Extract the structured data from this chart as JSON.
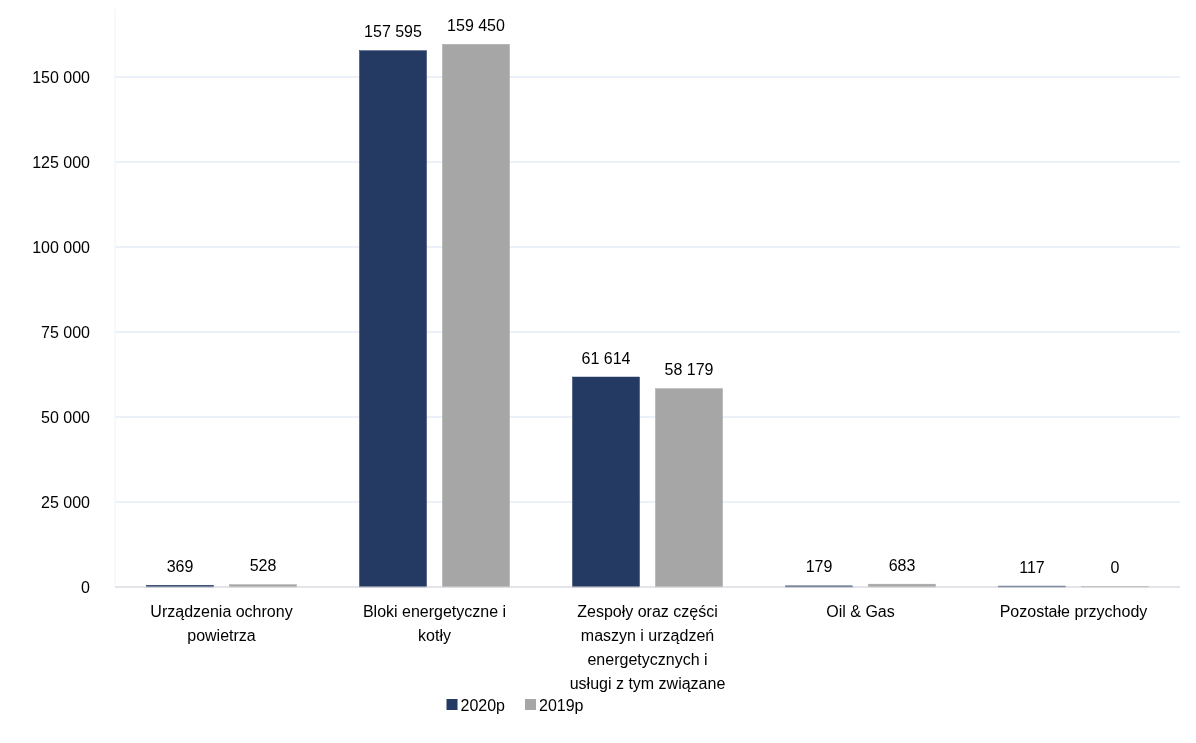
{
  "chart_data": {
    "type": "bar",
    "categories": [
      "Urządzenia ochrony powietrza",
      "Bloki energetyczne i kotły",
      "Zespoły oraz części maszyn i urządzeń energetycznych i usługi z tym związane",
      "Oil & Gas",
      "Pozostałe przychody"
    ],
    "series": [
      {
        "name": "2020p",
        "color": "#243a63",
        "values": [
          369,
          157595,
          61614,
          179,
          117
        ],
        "value_labels": [
          "369",
          "157 595",
          "61 614",
          "179",
          "117"
        ]
      },
      {
        "name": "2019p",
        "color": "#a6a6a6",
        "values": [
          528,
          159450,
          58179,
          683,
          0
        ],
        "value_labels": [
          "528",
          "159 450",
          "58 179",
          "683",
          "0"
        ]
      }
    ],
    "ylim": [
      0,
      170000
    ],
    "yticks": [
      {
        "value": 0,
        "label": "0"
      },
      {
        "value": 25000,
        "label": "25 000"
      },
      {
        "value": 50000,
        "label": "50 000"
      },
      {
        "value": 75000,
        "label": "75 000"
      },
      {
        "value": 100000,
        "label": "100 000"
      },
      {
        "value": 125000,
        "label": "125 000"
      },
      {
        "value": 150000,
        "label": "150 000"
      }
    ],
    "grid": "y",
    "legend": "bottom"
  }
}
